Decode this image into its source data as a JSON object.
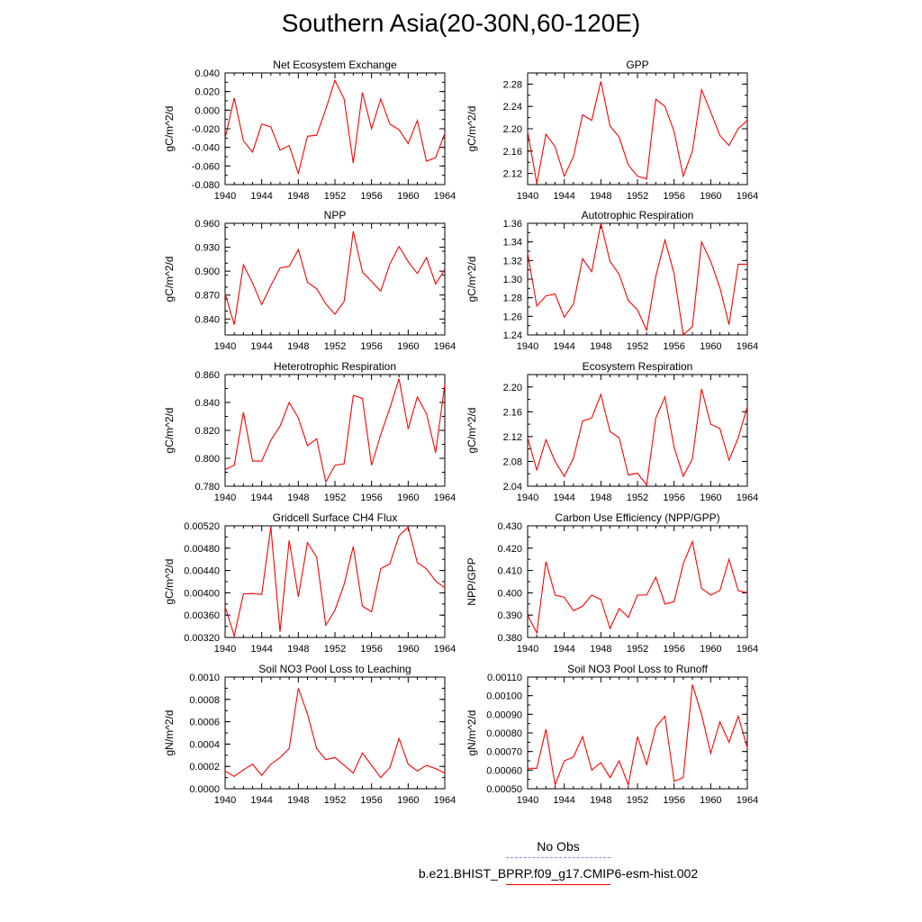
{
  "title": "Southern Asia(20-30N,60-120E)",
  "colors": {
    "model": "#ff0000",
    "obs": "#8888ee",
    "axis": "#000000"
  },
  "legend": {
    "items": [
      {
        "label": "No Obs",
        "style": "dashed",
        "color": "#8888ee"
      },
      {
        "label": "b.e21.BHIST_BPRP.f09_g17.CMIP6-esm-hist.002",
        "style": "solid",
        "color": "#ff0000"
      }
    ]
  },
  "chart_data": [
    {
      "type": "line",
      "title": "Net Ecosystem Exchange",
      "ylabel": "gC/m^2/d",
      "xlim": [
        1940,
        1964
      ],
      "ylim": [
        -0.08,
        0.04
      ],
      "xticks": [
        "1940",
        "1944",
        "1948",
        "1952",
        "1956",
        "1960",
        "1964"
      ],
      "yticks": [
        "-0.080",
        "-0.060",
        "-0.040",
        "-0.020",
        "0.000",
        "0.020",
        "0.040"
      ],
      "x": [
        1940,
        1941,
        1942,
        1943,
        1944,
        1945,
        1946,
        1947,
        1948,
        1949,
        1950,
        1951,
        1952,
        1953,
        1954,
        1955,
        1956,
        1957,
        1958,
        1959,
        1960,
        1961,
        1962,
        1963,
        1964
      ],
      "series": [
        {
          "values": [
            -0.03,
            0.013,
            -0.033,
            -0.045,
            -0.015,
            -0.018,
            -0.043,
            -0.038,
            -0.068,
            -0.028,
            -0.027,
            0.001,
            0.032,
            0.012,
            -0.057,
            0.019,
            -0.02,
            0.012,
            -0.015,
            -0.021,
            -0.036,
            -0.011,
            -0.055,
            -0.051,
            -0.025
          ]
        }
      ]
    },
    {
      "type": "line",
      "title": "GPP",
      "ylabel": "gC/m^2/d",
      "xlim": [
        1940,
        1964
      ],
      "ylim": [
        2.1,
        2.3
      ],
      "xticks": [
        "1940",
        "1944",
        "1948",
        "1952",
        "1956",
        "1960",
        "1964"
      ],
      "yticks": [
        "2.12",
        "2.16",
        "2.20",
        "2.24",
        "2.28"
      ],
      "x": [
        1940,
        1941,
        1942,
        1943,
        1944,
        1945,
        1946,
        1947,
        1948,
        1949,
        1950,
        1951,
        1952,
        1953,
        1954,
        1955,
        1956,
        1957,
        1958,
        1959,
        1960,
        1961,
        1962,
        1963,
        1964
      ],
      "series": [
        {
          "values": [
            2.195,
            2.102,
            2.19,
            2.168,
            2.115,
            2.15,
            2.225,
            2.215,
            2.285,
            2.205,
            2.185,
            2.135,
            2.115,
            2.11,
            2.253,
            2.24,
            2.195,
            2.115,
            2.16,
            2.27,
            2.23,
            2.188,
            2.17,
            2.2,
            2.215
          ]
        }
      ]
    },
    {
      "type": "line",
      "title": "NPP",
      "ylabel": "gC/m^2/d",
      "xlim": [
        1940,
        1964
      ],
      "ylim": [
        0.82,
        0.96
      ],
      "xticks": [
        "1940",
        "1944",
        "1948",
        "1952",
        "1956",
        "1960",
        "1964"
      ],
      "yticks": [
        "0.840",
        "0.870",
        "0.900",
        "0.930",
        "0.960"
      ],
      "x": [
        1940,
        1941,
        1942,
        1943,
        1944,
        1945,
        1946,
        1947,
        1948,
        1949,
        1950,
        1951,
        1952,
        1953,
        1954,
        1955,
        1956,
        1957,
        1958,
        1959,
        1960,
        1961,
        1962,
        1963,
        1964
      ],
      "series": [
        {
          "values": [
            0.872,
            0.833,
            0.908,
            0.885,
            0.858,
            0.882,
            0.904,
            0.906,
            0.927,
            0.886,
            0.878,
            0.859,
            0.846,
            0.862,
            0.95,
            0.899,
            0.887,
            0.875,
            0.909,
            0.931,
            0.912,
            0.897,
            0.917,
            0.884,
            0.902
          ]
        }
      ]
    },
    {
      "type": "line",
      "title": "Autotrophic Respiration",
      "ylabel": "gC/m^2/d",
      "xlim": [
        1940,
        1964
      ],
      "ylim": [
        1.24,
        1.36
      ],
      "xticks": [
        "1940",
        "1944",
        "1948",
        "1952",
        "1956",
        "1960",
        "1964"
      ],
      "yticks": [
        "1.24",
        "1.26",
        "1.28",
        "1.30",
        "1.32",
        "1.34",
        "1.36"
      ],
      "x": [
        1940,
        1941,
        1942,
        1943,
        1944,
        1945,
        1946,
        1947,
        1948,
        1949,
        1950,
        1951,
        1952,
        1953,
        1954,
        1955,
        1956,
        1957,
        1958,
        1959,
        1960,
        1961,
        1962,
        1963,
        1964
      ],
      "series": [
        {
          "values": [
            1.328,
            1.271,
            1.282,
            1.284,
            1.259,
            1.273,
            1.322,
            1.308,
            1.36,
            1.319,
            1.305,
            1.277,
            1.267,
            1.245,
            1.303,
            1.342,
            1.306,
            1.24,
            1.249,
            1.34,
            1.319,
            1.291,
            1.251,
            1.316,
            1.316
          ]
        }
      ]
    },
    {
      "type": "line",
      "title": "Heterotrophic Respiration",
      "ylabel": "gC/m^2/d",
      "xlim": [
        1940,
        1964
      ],
      "ylim": [
        0.78,
        0.86
      ],
      "xticks": [
        "1940",
        "1944",
        "1948",
        "1952",
        "1956",
        "1960",
        "1964"
      ],
      "yticks": [
        "0.780",
        "0.800",
        "0.820",
        "0.840",
        "0.860"
      ],
      "x": [
        1940,
        1941,
        1942,
        1943,
        1944,
        1945,
        1946,
        1947,
        1948,
        1949,
        1950,
        1951,
        1952,
        1953,
        1954,
        1955,
        1956,
        1957,
        1958,
        1959,
        1960,
        1961,
        1962,
        1963,
        1964
      ],
      "series": [
        {
          "values": [
            0.792,
            0.795,
            0.833,
            0.798,
            0.798,
            0.813,
            0.823,
            0.84,
            0.829,
            0.809,
            0.814,
            0.783,
            0.795,
            0.796,
            0.845,
            0.843,
            0.795,
            0.817,
            0.836,
            0.857,
            0.821,
            0.844,
            0.832,
            0.804,
            0.853
          ]
        }
      ]
    },
    {
      "type": "line",
      "title": "Ecosystem Respiration",
      "ylabel": "gC/m^2/d",
      "xlim": [
        1940,
        1964
      ],
      "ylim": [
        2.04,
        2.22
      ],
      "xticks": [
        "1940",
        "1944",
        "1948",
        "1952",
        "1956",
        "1960",
        "1964"
      ],
      "yticks": [
        "2.04",
        "2.08",
        "2.12",
        "2.16",
        "2.20"
      ],
      "x": [
        1940,
        1941,
        1942,
        1943,
        1944,
        1945,
        1946,
        1947,
        1948,
        1949,
        1950,
        1951,
        1952,
        1953,
        1954,
        1955,
        1956,
        1957,
        1958,
        1959,
        1960,
        1961,
        1962,
        1963,
        1964
      ],
      "series": [
        {
          "values": [
            2.118,
            2.066,
            2.115,
            2.08,
            2.056,
            2.085,
            2.145,
            2.15,
            2.188,
            2.128,
            2.118,
            2.058,
            2.061,
            2.042,
            2.15,
            2.184,
            2.103,
            2.056,
            2.084,
            2.197,
            2.14,
            2.133,
            2.082,
            2.118,
            2.168
          ]
        }
      ]
    },
    {
      "type": "line",
      "title": "Gridcell Surface CH4 Flux",
      "ylabel": "gC/m^2/d",
      "xlim": [
        1940,
        1964
      ],
      "ylim": [
        0.0032,
        0.0052
      ],
      "xticks": [
        "1940",
        "1944",
        "1948",
        "1952",
        "1956",
        "1960",
        "1964"
      ],
      "yticks": [
        "0.00320",
        "0.00360",
        "0.00400",
        "0.00440",
        "0.00480",
        "0.00520"
      ],
      "x": [
        1940,
        1941,
        1942,
        1943,
        1944,
        1945,
        1946,
        1947,
        1948,
        1949,
        1950,
        1951,
        1952,
        1953,
        1954,
        1955,
        1956,
        1957,
        1958,
        1959,
        1960,
        1961,
        1962,
        1963,
        1964
      ],
      "series": [
        {
          "values": [
            0.00375,
            0.00323,
            0.00398,
            0.00399,
            0.00397,
            0.00518,
            0.0033,
            0.00494,
            0.00393,
            0.0049,
            0.00464,
            0.00342,
            0.00369,
            0.00415,
            0.00483,
            0.00376,
            0.00366,
            0.00443,
            0.00452,
            0.00502,
            0.00518,
            0.00454,
            0.00443,
            0.00421,
            0.00409
          ]
        }
      ]
    },
    {
      "type": "line",
      "title": "Carbon Use Efficiency (NPP/GPP)",
      "ylabel": "NPP/GPP",
      "xlim": [
        1940,
        1964
      ],
      "ylim": [
        0.38,
        0.43
      ],
      "xticks": [
        "1940",
        "1944",
        "1948",
        "1952",
        "1956",
        "1960",
        "1964"
      ],
      "yticks": [
        "0.380",
        "0.390",
        "0.400",
        "0.410",
        "0.420",
        "0.430"
      ],
      "x": [
        1940,
        1941,
        1942,
        1943,
        1944,
        1945,
        1946,
        1947,
        1948,
        1949,
        1950,
        1951,
        1952,
        1953,
        1954,
        1955,
        1956,
        1957,
        1958,
        1959,
        1960,
        1961,
        1962,
        1963,
        1964
      ],
      "series": [
        {
          "values": [
            0.39,
            0.382,
            0.414,
            0.399,
            0.398,
            0.392,
            0.394,
            0.399,
            0.397,
            0.384,
            0.393,
            0.389,
            0.399,
            0.399,
            0.407,
            0.395,
            0.396,
            0.413,
            0.423,
            0.402,
            0.399,
            0.401,
            0.415,
            0.401,
            0.4
          ]
        }
      ]
    },
    {
      "type": "line",
      "title": "Soil NO3 Pool Loss to Leaching",
      "ylabel": "gN/m^2/d",
      "xlim": [
        1940,
        1964
      ],
      "ylim": [
        0,
        0.001
      ],
      "xticks": [
        "1940",
        "1944",
        "1948",
        "1952",
        "1956",
        "1960",
        "1964"
      ],
      "yticks": [
        "0.0000",
        "0.0002",
        "0.0004",
        "0.0006",
        "0.0008",
        "0.0010"
      ],
      "x": [
        1940,
        1941,
        1942,
        1943,
        1944,
        1945,
        1946,
        1947,
        1948,
        1949,
        1950,
        1951,
        1952,
        1953,
        1954,
        1955,
        1956,
        1957,
        1958,
        1959,
        1960,
        1961,
        1962,
        1963,
        1964
      ],
      "series": [
        {
          "values": [
            0.00016,
            0.00011,
            0.00017,
            0.00022,
            0.00012,
            0.00022,
            0.00028,
            0.00036,
            0.0009,
            0.00067,
            0.00036,
            0.00026,
            0.00028,
            0.00021,
            0.00014,
            0.00032,
            0.00021,
            0.0001,
            0.00019,
            0.00045,
            0.00022,
            0.00016,
            0.00021,
            0.00018,
            0.00014
          ]
        }
      ]
    },
    {
      "type": "line",
      "title": "Soil NO3 Pool Loss to Runoff",
      "ylabel": "gN/m^2/d",
      "xlim": [
        1940,
        1964
      ],
      "ylim": [
        0.0005,
        0.0011
      ],
      "xticks": [
        "1940",
        "1944",
        "1948",
        "1952",
        "1956",
        "1960",
        "1964"
      ],
      "yticks": [
        "0.00050",
        "0.00060",
        "0.00070",
        "0.00080",
        "0.00090",
        "0.00100",
        "0.00110"
      ],
      "x": [
        1940,
        1941,
        1942,
        1943,
        1944,
        1945,
        1946,
        1947,
        1948,
        1949,
        1950,
        1951,
        1952,
        1953,
        1954,
        1955,
        1956,
        1957,
        1958,
        1959,
        1960,
        1961,
        1962,
        1963,
        1964
      ],
      "series": [
        {
          "values": [
            0.00061,
            0.00061,
            0.00082,
            0.00052,
            0.00065,
            0.00067,
            0.00078,
            0.0006,
            0.00064,
            0.00056,
            0.00065,
            0.00052,
            0.00078,
            0.00063,
            0.00083,
            0.00089,
            0.00054,
            0.00056,
            0.00106,
            0.0009,
            0.00069,
            0.00086,
            0.00075,
            0.00089,
            0.00072
          ]
        }
      ]
    }
  ]
}
